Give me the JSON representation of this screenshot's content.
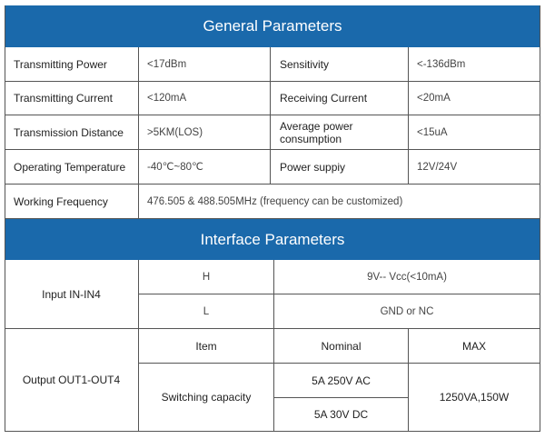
{
  "general": {
    "title": "General Parameters",
    "rows": [
      [
        "Transmitting Power",
        "<17dBm",
        "Sensitivity",
        "<-136dBm"
      ],
      [
        "Transmitting Current",
        "<120mA",
        "Receiving Current",
        "<20mA"
      ],
      [
        "Transmission Distance",
        ">5KM(LOS)",
        "Average power consumption",
        "<15uA"
      ],
      [
        "Operating Temperature",
        "-40℃~80℃",
        "Power suppiy",
        "12V/24V"
      ]
    ],
    "frequency_label": "Working Frequency",
    "frequency_value": "476.505 & 488.505MHz  (frequency can be customized)"
  },
  "interface": {
    "title": "Interface Parameters",
    "input": {
      "label": "Input  IN-IN4",
      "h": "H",
      "h_value": "9V-- Vcc(<10mA)",
      "l": "L",
      "l_value": "GND  or NC"
    },
    "output": {
      "label": "Output OUT1-OUT4",
      "col_item": "Item",
      "col_nominal": "Nominal",
      "col_max": "MAX",
      "item": "Switching capacity",
      "nominal_ac": "5A 250V AC",
      "nominal_dc": "5A 30V DC",
      "max": "1250VA,150W"
    }
  },
  "colors": {
    "header": "#1a69ab"
  }
}
